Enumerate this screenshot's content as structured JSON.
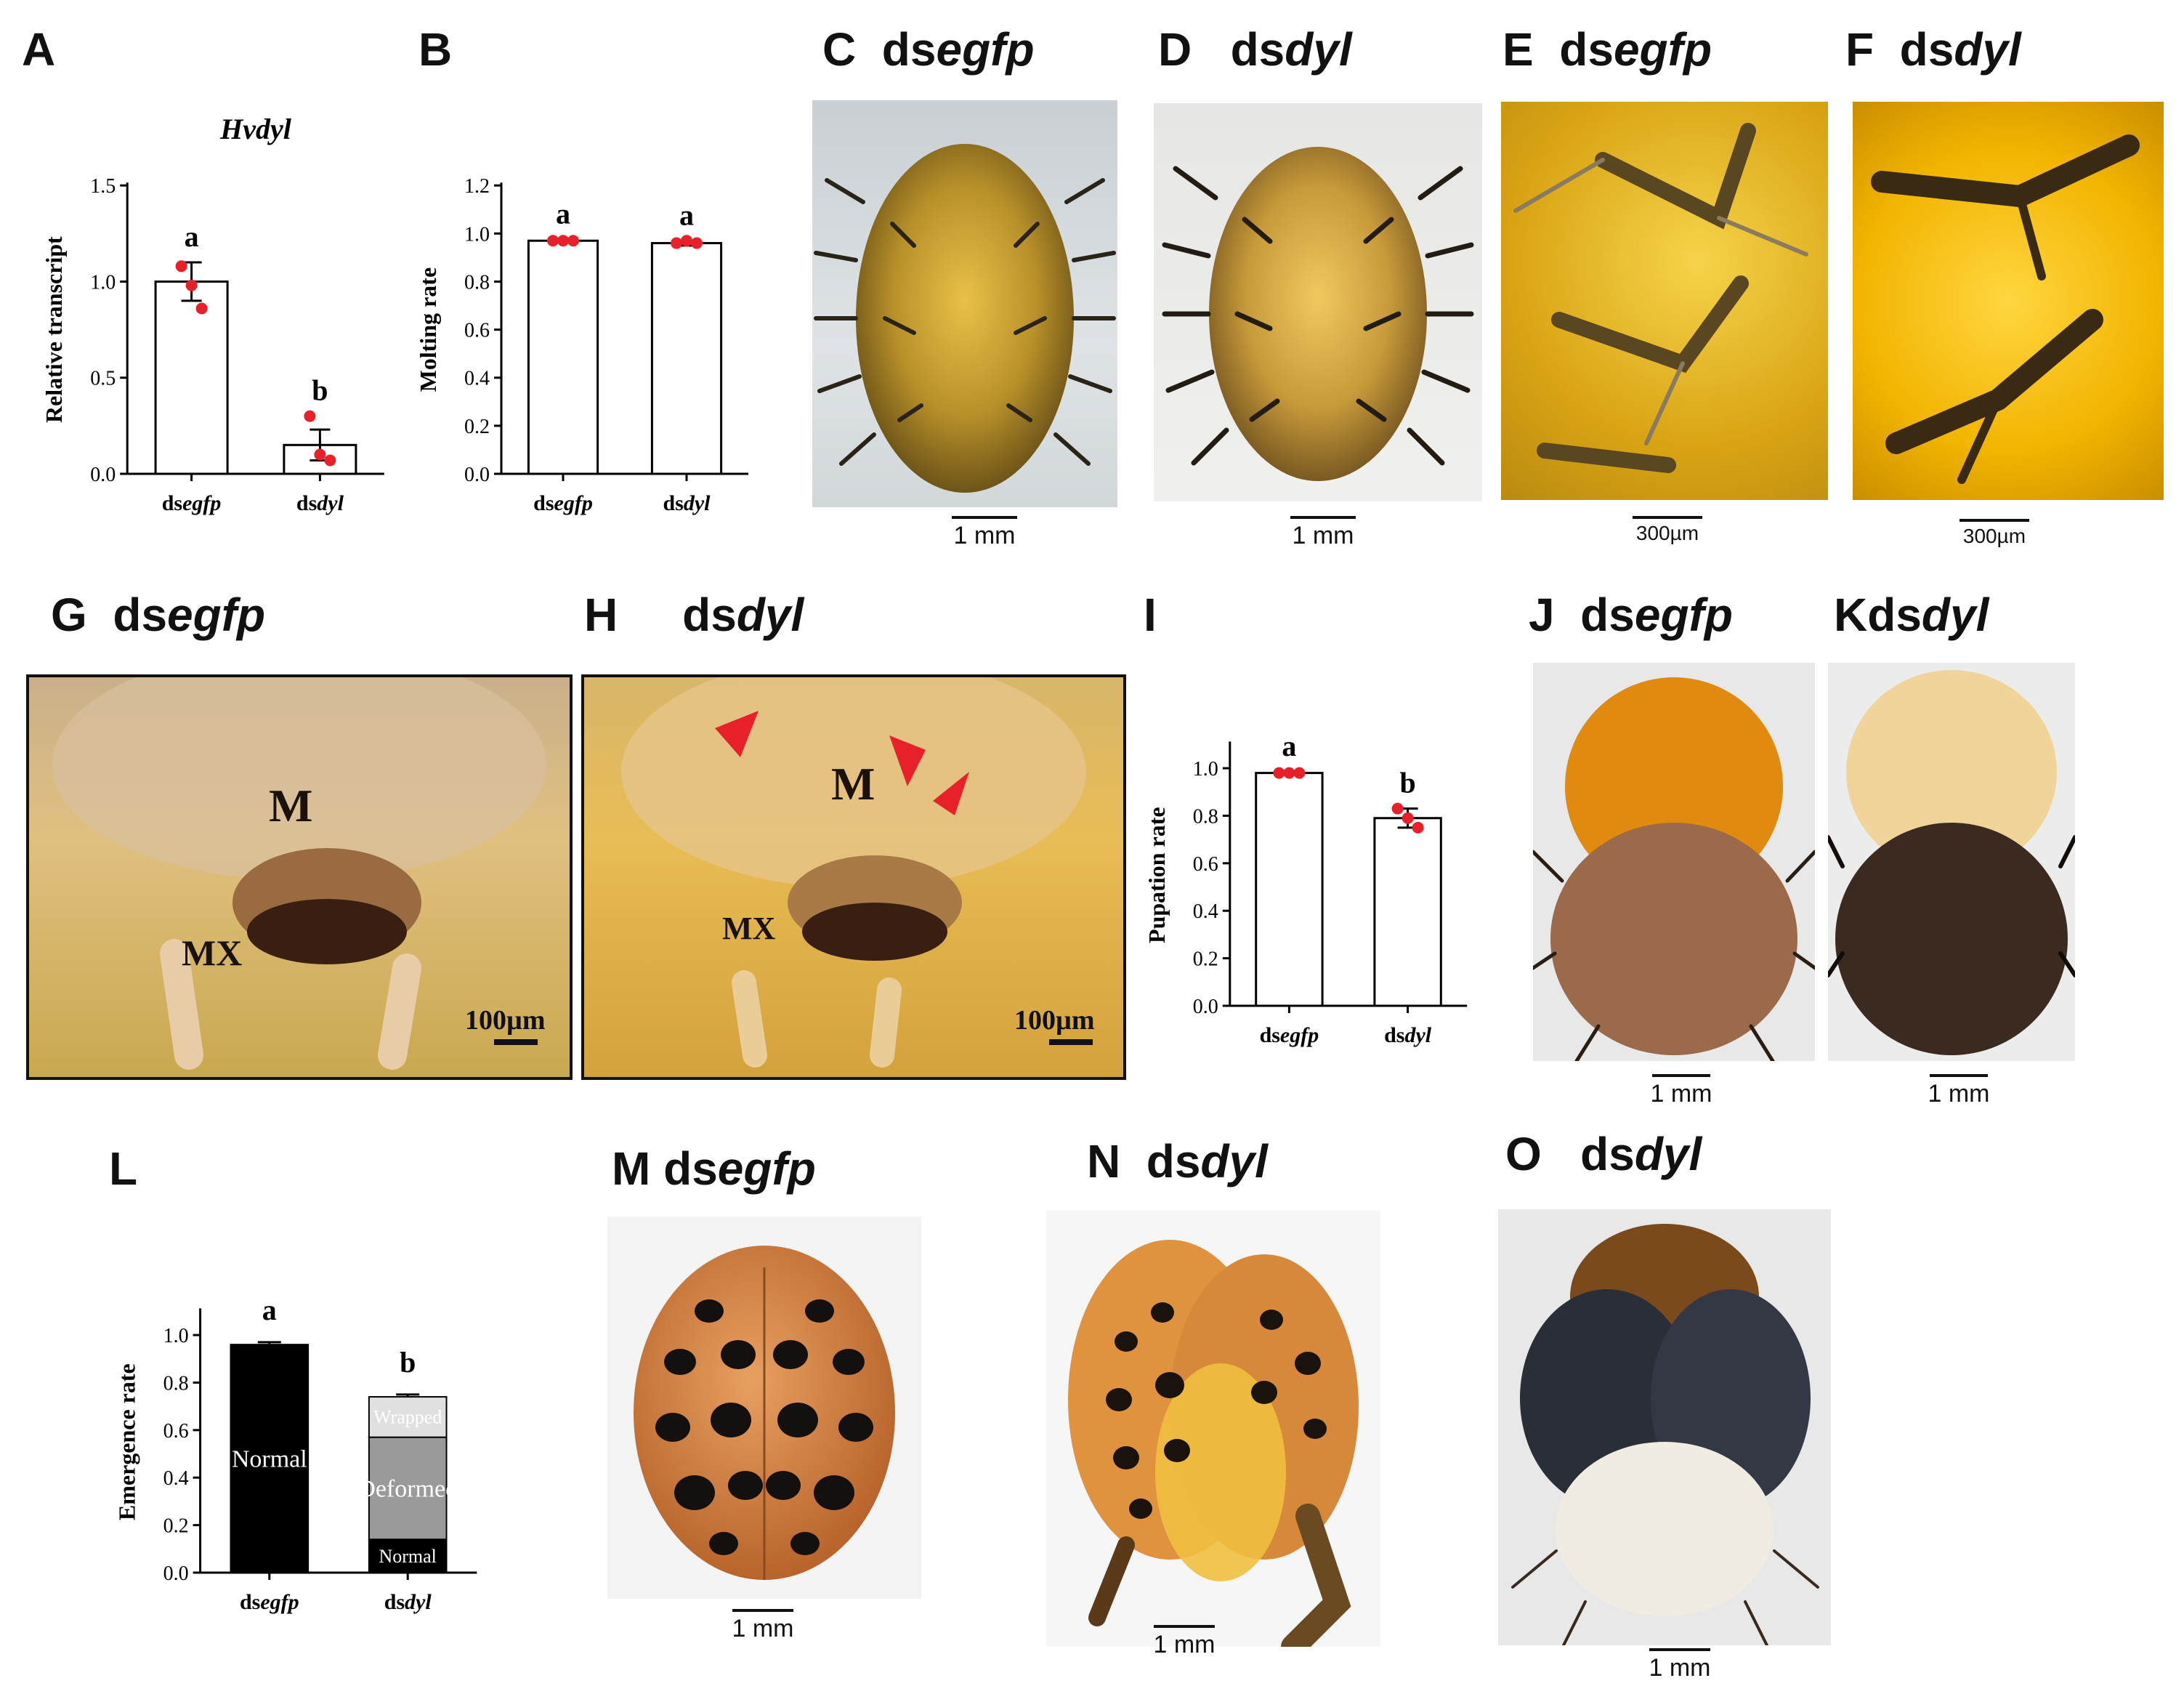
{
  "figure": {
    "panels": {
      "A": {
        "letter": "A"
      },
      "B": {
        "letter": "B"
      },
      "C": {
        "letter": "C",
        "prefix": "ds",
        "gene": "egfp",
        "scale": "1 mm"
      },
      "D": {
        "letter": "D",
        "prefix": "ds",
        "gene": "dyl",
        "scale": "1 mm"
      },
      "E": {
        "letter": "E",
        "prefix": "ds",
        "gene": "egfp",
        "scale": "300µm"
      },
      "F": {
        "letter": "F",
        "prefix": "ds",
        "gene": "dyl",
        "scale": "300µm"
      },
      "G": {
        "letter": "G",
        "prefix": "ds",
        "gene": "egfp",
        "label_m": "M",
        "label_mx": "MX",
        "scale": "100µm"
      },
      "H": {
        "letter": "H",
        "prefix": "ds",
        "gene": "dyl",
        "label_m": "M",
        "label_mx": "MX",
        "scale": "100µm"
      },
      "I": {
        "letter": "I"
      },
      "J": {
        "letter": "J",
        "prefix": "ds",
        "gene": "egfp",
        "scale": "1 mm"
      },
      "K": {
        "letter": "K",
        "prefix": "ds",
        "gene": "dyl",
        "scale": "1 mm"
      },
      "L": {
        "letter": "L"
      },
      "M": {
        "letter": "M",
        "prefix": "ds",
        "gene": "egfp",
        "scale": "1 mm"
      },
      "N": {
        "letter": "N",
        "prefix": "ds",
        "gene": "dyl",
        "scale": "1 mm"
      },
      "O": {
        "letter": "O",
        "prefix": "ds",
        "gene": "dyl",
        "scale": "1 mm"
      }
    },
    "colors": {
      "dots": "#e8202a",
      "bar_black": "#000000",
      "bar_gray": "#9a9a9a",
      "bar_light": "#e0e0e0"
    }
  },
  "chart_data": [
    {
      "id": "A",
      "type": "bar",
      "title": "Hvdyl",
      "ylabel": "Relative transcript",
      "ylim": [
        0,
        1.5
      ],
      "yticks": [
        "0.0",
        "0.5",
        "1.0",
        "1.5"
      ],
      "ytick_values": [
        0,
        0.5,
        1.0,
        1.5
      ],
      "categories": [
        {
          "prefix": "ds",
          "gene": "egfp"
        },
        {
          "prefix": "ds",
          "gene": "dyl"
        }
      ],
      "values": [
        1.0,
        0.15
      ],
      "errors": [
        0.1,
        0.08
      ],
      "points": [
        [
          1.08,
          0.98,
          0.86
        ],
        [
          0.3,
          0.1,
          0.07
        ]
      ],
      "letters": [
        "a",
        "b"
      ]
    },
    {
      "id": "B",
      "type": "bar",
      "ylabel": "Molting rate",
      "ylim": [
        0,
        1.2
      ],
      "yticks": [
        "0.0",
        "0.2",
        "0.4",
        "0.6",
        "0.8",
        "1.0",
        "1.2"
      ],
      "ytick_values": [
        0,
        0.2,
        0.4,
        0.6,
        0.8,
        1.0,
        1.2
      ],
      "categories": [
        {
          "prefix": "ds",
          "gene": "egfp"
        },
        {
          "prefix": "ds",
          "gene": "dyl"
        }
      ],
      "values": [
        0.97,
        0.96
      ],
      "errors": [
        0.005,
        0.01
      ],
      "points": [
        [
          0.97,
          0.97,
          0.97
        ],
        [
          0.96,
          0.97,
          0.96
        ]
      ],
      "letters": [
        "a",
        "a"
      ]
    },
    {
      "id": "I",
      "type": "bar",
      "ylabel": "Pupation rate",
      "ylim": [
        0,
        1.1
      ],
      "yticks": [
        "0.0",
        "0.2",
        "0.4",
        "0.6",
        "0.8",
        "1.0"
      ],
      "ytick_values": [
        0,
        0.2,
        0.4,
        0.6,
        0.8,
        1.0
      ],
      "categories": [
        {
          "prefix": "ds",
          "gene": "egfp"
        },
        {
          "prefix": "ds",
          "gene": "dyl"
        }
      ],
      "values": [
        0.98,
        0.79
      ],
      "errors": [
        0.005,
        0.04
      ],
      "points": [
        [
          0.98,
          0.98,
          0.98
        ],
        [
          0.83,
          0.79,
          0.75
        ]
      ],
      "letters": [
        "a",
        "b"
      ]
    },
    {
      "id": "L",
      "type": "stacked_bar",
      "ylabel": "Emergence rate",
      "ylim": [
        0,
        1.1
      ],
      "yticks": [
        "0.0",
        "0.2",
        "0.4",
        "0.6",
        "0.8",
        "1.0"
      ],
      "ytick_values": [
        0,
        0.2,
        0.4,
        0.6,
        0.8,
        1.0
      ],
      "categories": [
        {
          "prefix": "ds",
          "gene": "egfp"
        },
        {
          "prefix": "ds",
          "gene": "dyl"
        }
      ],
      "letters": [
        "a",
        "b"
      ],
      "series": [
        {
          "name": "Normal",
          "values": [
            0.96,
            0.14
          ],
          "errors": [
            0.01,
            0.03
          ]
        },
        {
          "name": "Deformed",
          "values": [
            0,
            0.43
          ],
          "errors": [
            0,
            0.02
          ]
        },
        {
          "name": "Wrapped",
          "values": [
            0,
            0.17
          ],
          "errors": [
            0,
            0.01
          ]
        }
      ]
    }
  ]
}
